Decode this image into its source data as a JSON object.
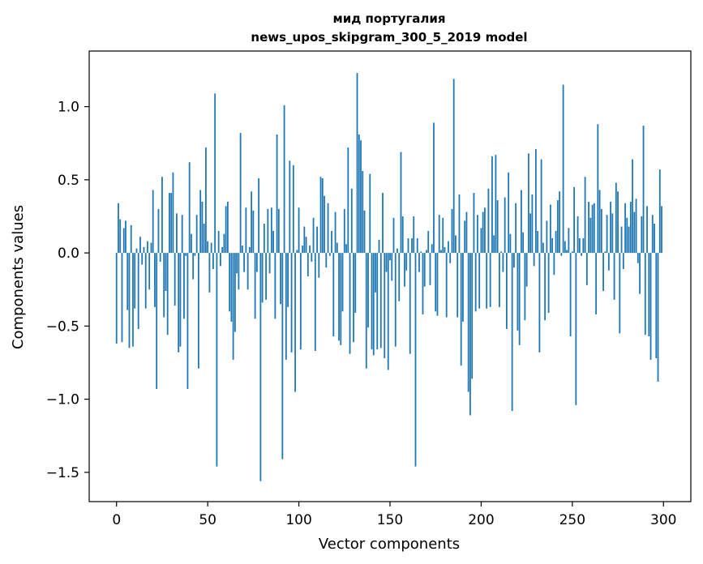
{
  "chart_data": {
    "type": "bar",
    "title": "мид португалия",
    "subtitle": "news_upos_skipgram_300_5_2019 model",
    "xlabel": "Vector components",
    "ylabel": "Components values",
    "xlim": [
      -15,
      315
    ],
    "ylim": [
      -1.7,
      1.38
    ],
    "grid": false,
    "bar_color": "#1f77b4",
    "x_ticks": [
      0,
      50,
      100,
      150,
      200,
      250,
      300
    ],
    "x_tick_labels": [
      "0",
      "50",
      "100",
      "150",
      "200",
      "250",
      "300"
    ],
    "y_ticks": [
      -1.5,
      -1.0,
      -0.5,
      0.0,
      0.5,
      1.0
    ],
    "y_tick_labels": [
      "−1.5",
      "−1.0",
      "−0.5",
      "0.0",
      "0.5",
      "1.0"
    ],
    "values": [
      -0.62,
      0.34,
      0.23,
      -0.61,
      0.17,
      0.22,
      -0.39,
      -0.65,
      0.19,
      -0.64,
      -0.38,
      0.03,
      -0.52,
      0.11,
      -0.08,
      0.04,
      -0.38,
      0.08,
      -0.25,
      0.07,
      0.43,
      -0.37,
      -0.93,
      0.3,
      -0.06,
      0.52,
      -0.44,
      -0.26,
      -0.56,
      0.41,
      0.41,
      0.55,
      -0.36,
      0.27,
      -0.68,
      -0.64,
      0.26,
      -0.45,
      -0.02,
      -0.93,
      0.62,
      0.13,
      -0.18,
      -0.02,
      0.26,
      -0.79,
      0.43,
      0.35,
      0.2,
      0.72,
      0.08,
      -0.27,
      0.07,
      -0.11,
      1.09,
      -1.46,
      0.15,
      -0.09,
      0.04,
      0.13,
      0.32,
      0.35,
      -0.4,
      -0.47,
      -0.73,
      -0.54,
      -0.14,
      -0.25,
      0.82,
      0.05,
      -0.13,
      0.31,
      -0.25,
      0.04,
      0.42,
      0.29,
      -0.45,
      -0.13,
      0.51,
      -1.56,
      -0.34,
      0.2,
      -0.32,
      0.3,
      -0.14,
      0.31,
      0.15,
      -0.45,
      0.81,
      0.3,
      -0.35,
      -1.41,
      1.01,
      -0.73,
      -0.37,
      0.63,
      -0.68,
      0.6,
      -0.95,
      0.02,
      0.31,
      -0.66,
      0.05,
      0.18,
      0.11,
      -0.16,
      0.05,
      -0.06,
      0.24,
      -0.67,
      0.18,
      -0.17,
      0.52,
      0.51,
      0.39,
      -0.1,
      0.34,
      -0.02,
      0.15,
      -0.57,
      0.28,
      0.07,
      -0.6,
      -0.63,
      -0.4,
      0.3,
      0.06,
      0.72,
      -0.69,
      0.44,
      -0.61,
      -0.41,
      1.23,
      0.81,
      0.77,
      0.56,
      0.29,
      -0.79,
      -0.51,
      0.54,
      -0.66,
      -0.7,
      -0.27,
      -0.66,
      0.09,
      -0.65,
      0.41,
      -0.72,
      -0.13,
      -0.8,
      -0.05,
      -0.19,
      0.24,
      -0.64,
      0.03,
      -0.33,
      0.69,
      0.25,
      -0.23,
      -0.12,
      0.1,
      -0.69,
      0.1,
      0.25,
      -1.46,
      0.1,
      -0.13,
      0.01,
      -0.42,
      -0.23,
      0.02,
      0.15,
      -0.22,
      0.06,
      0.89,
      -0.4,
      -0.43,
      0.26,
      0.02,
      0.24,
      0.04,
      -0.44,
      0.08,
      -0.07,
      0.3,
      1.19,
      0.12,
      -0.44,
      0.4,
      -0.77,
      -0.47,
      0.22,
      0.28,
      -0.95,
      -1.11,
      -0.86,
      0.41,
      -0.4,
      0.26,
      -0.38,
      0.17,
      0.28,
      0.31,
      -0.38,
      0.44,
      -0.37,
      0.66,
      0.12,
      0.67,
      0.36,
      -0.37,
      0.01,
      -0.13,
      0.38,
      -0.52,
      0.55,
      0.13,
      -1.08,
      -0.1,
      0.34,
      -0.53,
      -0.63,
      0.43,
      0.14,
      -0.46,
      -0.23,
      0.68,
      0.27,
      0.4,
      -0.09,
      0.71,
      0.15,
      -0.68,
      0.64,
      0.07,
      -0.46,
      0.22,
      -0.41,
      0.33,
      0.1,
      -0.15,
      0.15,
      0.36,
      0.42,
      -0.02,
      1.15,
      0.08,
      0.02,
      0.17,
      -0.57,
      0.01,
      0.45,
      -1.04,
      0.25,
      0.1,
      -0.02,
      0.1,
      0.52,
      -0.22,
      0.35,
      0.24,
      0.33,
      0.34,
      -0.42,
      0.88,
      0.43,
      0.3,
      -0.26,
      0.01,
      0.26,
      -0.12,
      0.35,
      0.27,
      -0.32,
      0.48,
      0.42,
      -0.55,
      0.18,
      -0.11,
      0.34,
      0.24,
      0.18,
      0.35,
      0.64,
      0.28,
      0.37,
      -0.07,
      -0.28,
      0.25,
      0.87,
      -0.56,
      0.32,
      -0.57,
      -0.73,
      0.26,
      0.2,
      -0.72,
      -0.88,
      0.57,
      0.32
    ]
  }
}
